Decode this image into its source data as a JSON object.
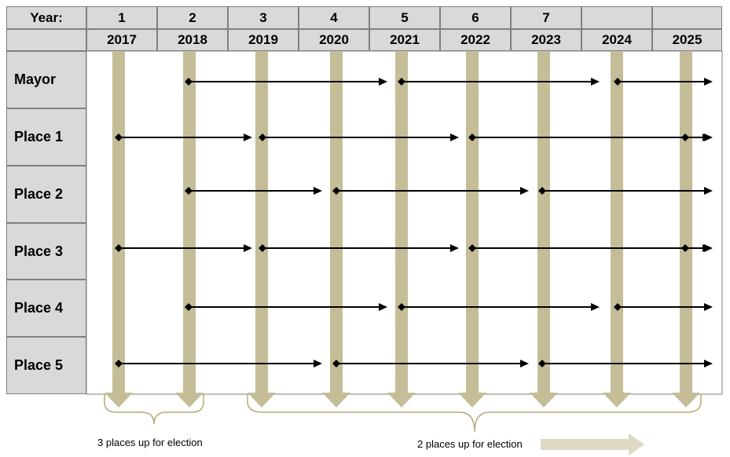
{
  "header": {
    "year_label": "Year:",
    "year_numbers": [
      "1",
      "2",
      "3",
      "4",
      "5",
      "6",
      "7",
      "",
      ""
    ],
    "years": [
      "2017",
      "2018",
      "2019",
      "2020",
      "2021",
      "2022",
      "2023",
      "2024",
      "2025"
    ]
  },
  "rows": [
    {
      "label": "Mayor",
      "terms": [
        [
          2018,
          2021
        ],
        [
          2021,
          2024
        ],
        [
          2024,
          2025
        ]
      ]
    },
    {
      "label": "Place 1",
      "terms": [
        [
          2017,
          2019
        ],
        [
          2019,
          2022
        ],
        [
          2022,
          2025
        ],
        [
          2025,
          2025
        ]
      ]
    },
    {
      "label": "Place 2",
      "terms": [
        [
          2018,
          2020
        ],
        [
          2020,
          2023
        ],
        [
          2023,
          2025
        ]
      ]
    },
    {
      "label": "Place 3",
      "terms": [
        [
          2017,
          2019
        ],
        [
          2019,
          2022
        ],
        [
          2022,
          2025
        ],
        [
          2025,
          2025
        ]
      ]
    },
    {
      "label": "Place 4",
      "terms": [
        [
          2018,
          2021
        ],
        [
          2021,
          2024
        ],
        [
          2024,
          2025
        ]
      ]
    },
    {
      "label": "Place 5",
      "terms": [
        [
          2017,
          2020
        ],
        [
          2020,
          2023
        ],
        [
          2023,
          2025
        ]
      ]
    }
  ],
  "notes": {
    "three_places": "3 places up for election",
    "two_places": "2 places up for election"
  },
  "colors": {
    "column": "#c4bd97",
    "header_bg": "#d9d9d9",
    "arrow": "#000000",
    "brace": "#b8a77a",
    "legend_arrow": "#ddd9c3"
  }
}
